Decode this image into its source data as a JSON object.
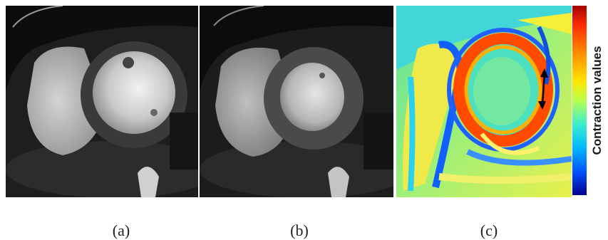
{
  "panels": [
    {
      "id": "a",
      "caption": "(a)",
      "image": "cardiac-mri-short-axis-frame-1"
    },
    {
      "id": "b",
      "caption": "(b)",
      "image": "cardiac-mri-short-axis-frame-2"
    },
    {
      "id": "c",
      "caption": "(c)",
      "image": "contraction-map-jet-colormap"
    }
  ],
  "colorbar": {
    "label": "Contraction values",
    "colors": [
      "#a50000",
      "#ff8c00",
      "#ffe600",
      "#3ff0c8",
      "#0050ff",
      "#00008c"
    ]
  },
  "annotation": {
    "icon": "double-headed-arrow-icon"
  }
}
